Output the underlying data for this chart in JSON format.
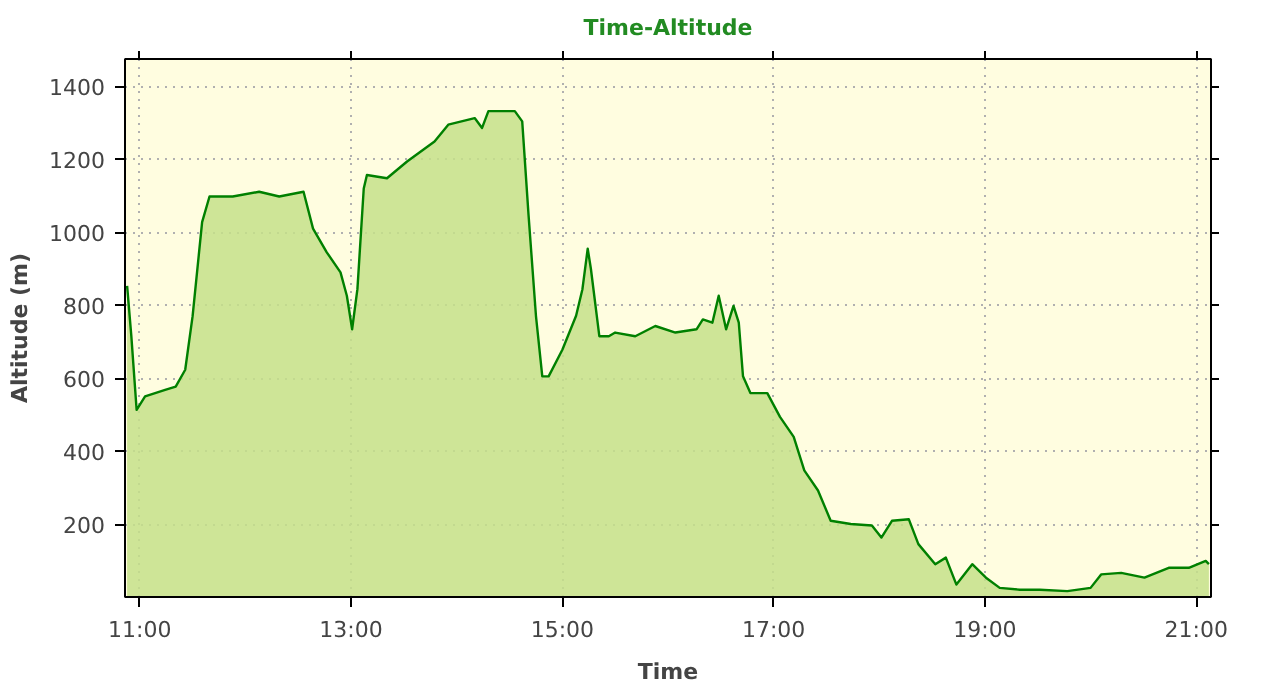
{
  "chart_data": {
    "type": "area",
    "title": "Time-Altitude",
    "xlabel": "Time",
    "ylabel": "Altitude (m)",
    "x": [
      10.88,
      10.92,
      10.97,
      11.05,
      11.24,
      11.34,
      11.43,
      11.5,
      11.59,
      11.66,
      11.88,
      12.13,
      12.32,
      12.55,
      12.64,
      12.77,
      12.9,
      12.96,
      13.01,
      13.06,
      13.12,
      13.15,
      13.34,
      13.53,
      13.79,
      13.92,
      14.17,
      14.24,
      14.3,
      14.55,
      14.62,
      14.68,
      14.75,
      14.81,
      14.87,
      15.0,
      15.13,
      15.19,
      15.24,
      15.27,
      15.35,
      15.44,
      15.5,
      15.69,
      15.88,
      16.07,
      16.27,
      16.33,
      16.42,
      16.48,
      16.55,
      16.62,
      16.67,
      16.71,
      16.78,
      16.94,
      17.06,
      17.19,
      17.29,
      17.42,
      17.54,
      17.73,
      17.93,
      18.02,
      18.12,
      18.28,
      18.37,
      18.53,
      18.63,
      18.73,
      18.88,
      19.01,
      19.14,
      19.33,
      19.52,
      19.78,
      20.0,
      20.1,
      20.29,
      20.51,
      20.74,
      20.93,
      21.09,
      21.12
    ],
    "series": [
      {
        "color": "#008000",
        "values": [
          853,
          715,
          513,
          550,
          568,
          577,
          623,
          770,
          1028,
          1098,
          1098,
          1111,
          1098,
          1111,
          1010,
          945,
          890,
          826,
          734,
          844,
          1120,
          1157,
          1148,
          1194,
          1249,
          1295,
          1313,
          1286,
          1332,
          1332,
          1304,
          1047,
          771,
          605,
          605,
          678,
          771,
          844,
          955,
          900,
          715,
          715,
          725,
          715,
          743,
          725,
          734,
          761,
          752,
          826,
          734,
          798,
          752,
          605,
          559,
          559,
          494,
          439,
          347,
          292,
          209,
          200,
          196,
          163,
          209,
          213,
          145,
          90,
          108,
          34,
          90,
          53,
          25,
          20,
          20,
          16,
          25,
          62,
          66,
          53,
          80,
          80,
          99,
          90
        ]
      }
    ],
    "xlim": [
      10.86,
      21.14
    ],
    "ylim": [
      0,
      1475
    ],
    "xticks": [
      {
        "value": 11,
        "label": "11:00"
      },
      {
        "value": 13,
        "label": "13:00"
      },
      {
        "value": 15,
        "label": "15:00"
      },
      {
        "value": 17,
        "label": "17:00"
      },
      {
        "value": 19,
        "label": "19:00"
      },
      {
        "value": 21,
        "label": "21:00"
      }
    ],
    "yticks": [
      200,
      400,
      600,
      800,
      1000,
      1200,
      1400
    ],
    "grid": true
  }
}
